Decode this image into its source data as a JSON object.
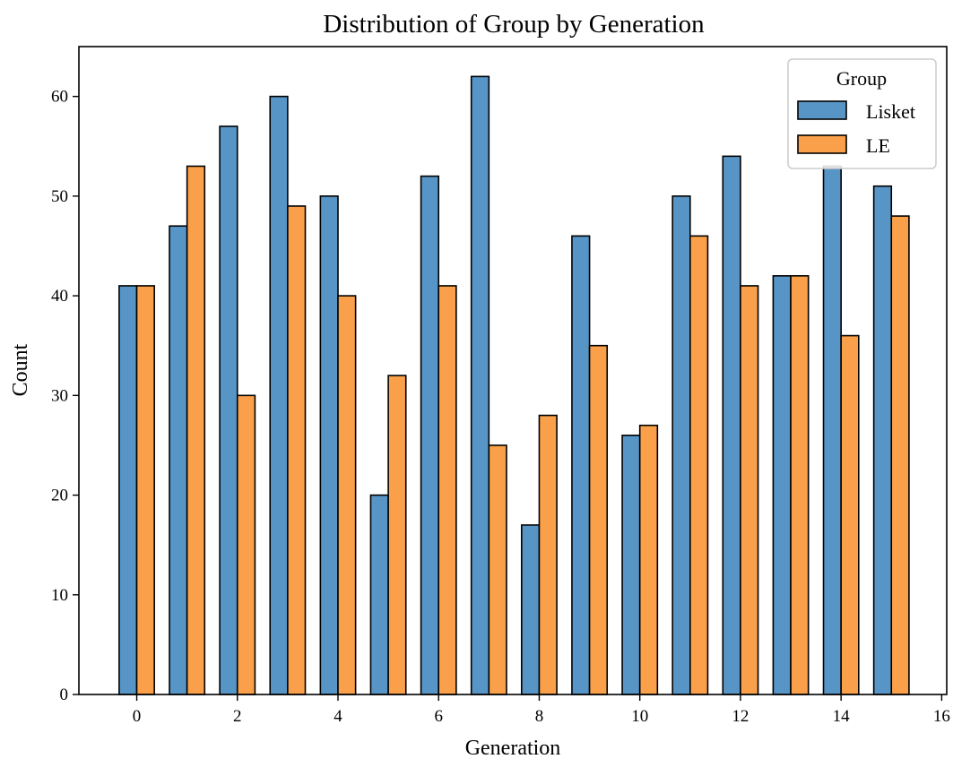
{
  "chart_data": {
    "type": "bar",
    "title": "Distribution of Group by Generation",
    "xlabel": "Generation",
    "ylabel": "Count",
    "xlim": [
      -1.15,
      16.1
    ],
    "ylim": [
      0,
      65
    ],
    "xticks": [
      0,
      2,
      4,
      6,
      8,
      10,
      12,
      14,
      16
    ],
    "yticks": [
      0,
      10,
      20,
      30,
      40,
      50,
      60
    ],
    "grid": false,
    "legend": {
      "title": "Group",
      "placement": "top-right"
    },
    "bar_width": 0.35,
    "x": [
      0,
      1,
      2,
      3,
      4,
      5,
      6,
      7,
      8,
      9,
      10,
      11,
      12,
      13,
      14,
      15
    ],
    "series": [
      {
        "name": "Lisket",
        "color": "#5795c7",
        "values": [
          41,
          47,
          57,
          60,
          50,
          20,
          52,
          62,
          17,
          46,
          26,
          50,
          54,
          42,
          53,
          51
        ]
      },
      {
        "name": "LE",
        "color": "#fba04a",
        "values": [
          41,
          53,
          30,
          49,
          40,
          32,
          41,
          25,
          28,
          35,
          27,
          46,
          41,
          42,
          36,
          48
        ]
      }
    ]
  }
}
